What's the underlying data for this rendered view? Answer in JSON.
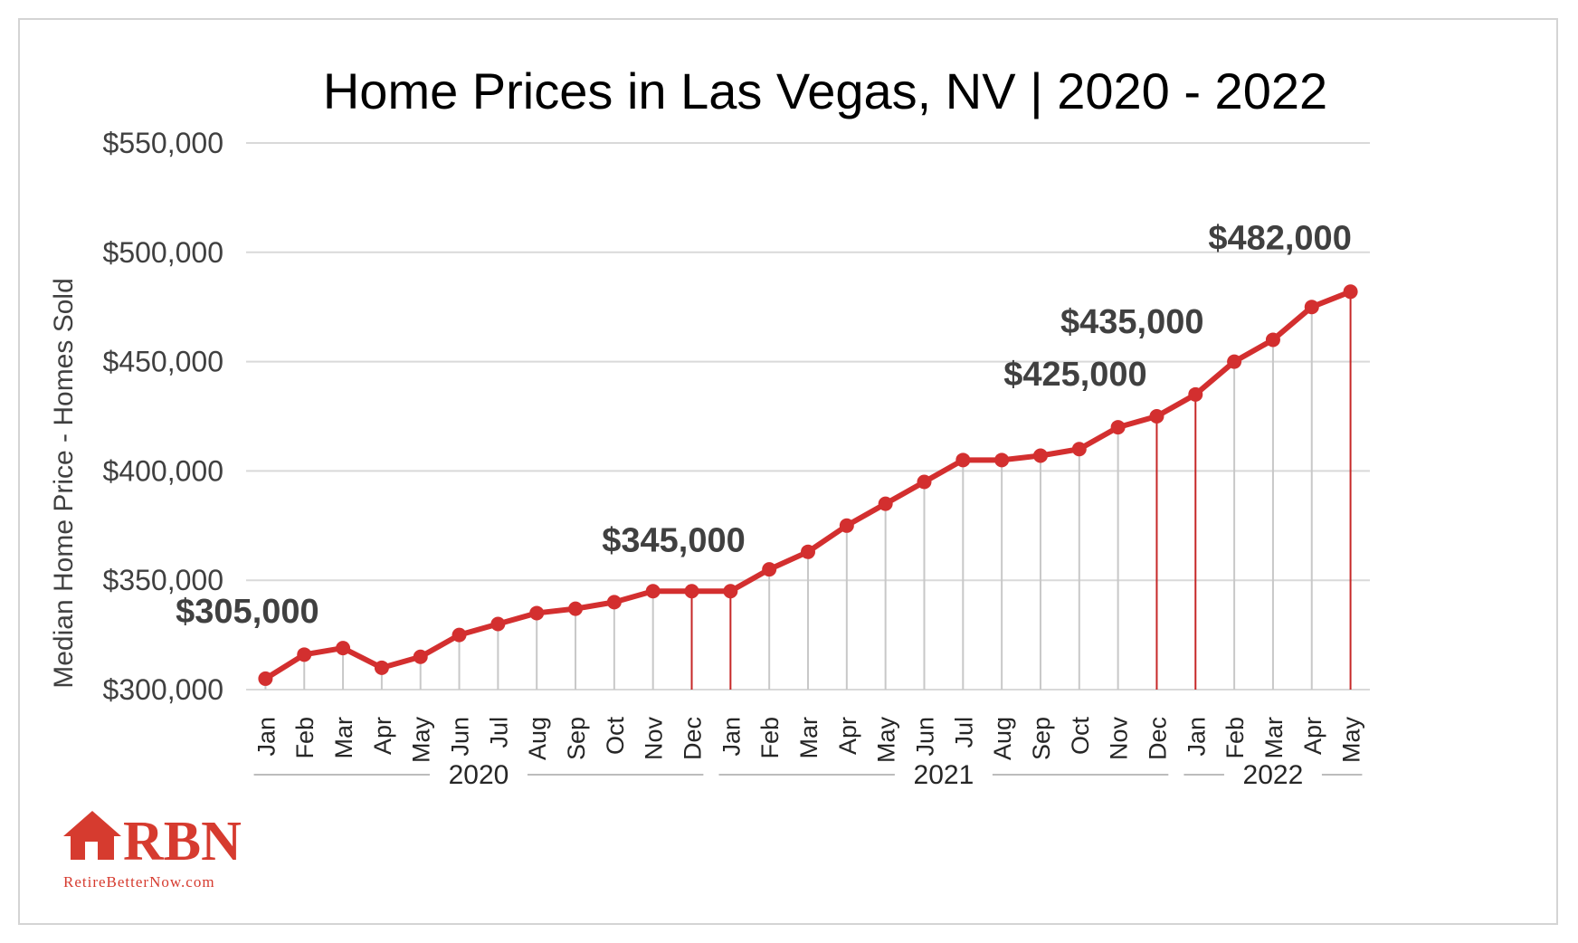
{
  "chart_data": {
    "type": "line",
    "title": "Home Prices in Las Vegas, NV | 2020 - 2022",
    "ylabel": "Median Home Price - Homes Sold",
    "xlabel": "",
    "ylim": [
      300000,
      550000
    ],
    "yticks": [
      300000,
      350000,
      400000,
      450000,
      500000,
      550000
    ],
    "ytick_labels": [
      "$300,000",
      "$350,000",
      "$400,000",
      "$450,000",
      "$500,000",
      "$550,000"
    ],
    "grid": true,
    "legend": "none",
    "categories": [
      "Jan",
      "Feb",
      "Mar",
      "Apr",
      "May",
      "Jun",
      "Jul",
      "Aug",
      "Sep",
      "Oct",
      "Nov",
      "Dec",
      "Jan",
      "Feb",
      "Mar",
      "Apr",
      "May",
      "Jun",
      "Jul",
      "Aug",
      "Sep",
      "Oct",
      "Nov",
      "Dec",
      "Jan",
      "Feb",
      "Mar",
      "Apr",
      "May"
    ],
    "years": [
      {
        "label": "2020",
        "start": 0,
        "end": 11
      },
      {
        "label": "2021",
        "start": 12,
        "end": 23
      },
      {
        "label": "2022",
        "start": 24,
        "end": 28
      }
    ],
    "series": [
      {
        "values": [
          305000,
          316000,
          319000,
          310000,
          315000,
          325000,
          330000,
          335000,
          337000,
          340000,
          345000,
          345000,
          345000,
          355000,
          363000,
          375000,
          385000,
          395000,
          405000,
          405000,
          407000,
          410000,
          420000,
          425000,
          435000,
          450000,
          460000,
          475000,
          482000
        ],
        "color": "#d32f2f"
      }
    ],
    "annotations": [
      {
        "index": 0,
        "text": "$305,000"
      },
      {
        "index": 11,
        "text": "$345,000"
      },
      {
        "index": 23,
        "text": "$425,000"
      },
      {
        "index": 24,
        "text": "$435,000"
      },
      {
        "index": 28,
        "text": "$482,000"
      }
    ],
    "highlight_drop_lines": [
      11,
      12,
      23,
      24,
      28
    ],
    "colors": {
      "line": "#d32f2f",
      "drop_line": "#c8c8c8",
      "drop_line_highlight": "#c62828",
      "grid": "#d9d9d9"
    }
  },
  "logo": {
    "brand": "RBN",
    "url_text": "RetireBetterNow.com",
    "color": "#d63b2f"
  }
}
